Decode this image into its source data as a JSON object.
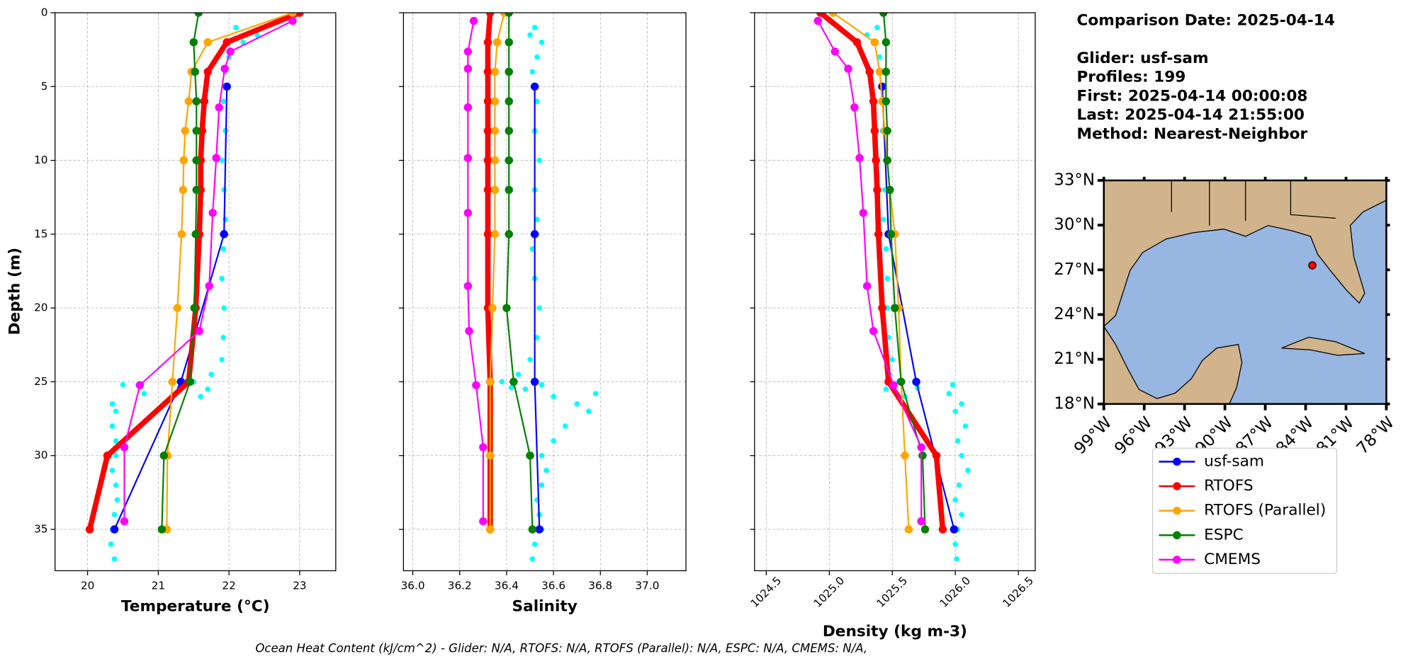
{
  "info": {
    "title": "Comparison Date: 2025-04-14",
    "lines": [
      "Glider: usf-sam",
      "Profiles: 199",
      "First: 2025-04-14 00:00:08",
      "Last: 2025-04-14 21:55:00",
      "Method: Nearest-Neighbor"
    ]
  },
  "footer": "Ocean Heat Content (kJ/cm^2) - Glider: N/A,  RTOFS: N/A,  RTOFS (Parallel): N/A,  ESPC: N/A,  CMEMS: N/A,",
  "chart_data": [
    {
      "type": "line",
      "x_label": "Temperature (°C)",
      "y_label": "Depth (m)",
      "xlim": [
        19.54,
        23.51
      ],
      "xticks": [
        20,
        21,
        22,
        23
      ],
      "ylim": [
        37.8,
        0
      ],
      "yticks": [
        0,
        5,
        10,
        15,
        20,
        25,
        30,
        35
      ],
      "ytick_labels": true,
      "grid": true,
      "scatter": {
        "color": "#00ffff",
        "depths": [
          1,
          1.5,
          2,
          3,
          4,
          6,
          8,
          10,
          12,
          14,
          16,
          18,
          20,
          22,
          23.5,
          24.5,
          25,
          25.5,
          26,
          25.2,
          26.5,
          27,
          28,
          29,
          30,
          31,
          32,
          33,
          34,
          35,
          36,
          37,
          25.8,
          25.4
        ],
        "values": [
          22.1,
          22.4,
          22.2,
          22.0,
          21.95,
          21.92,
          21.95,
          21.9,
          21.93,
          21.95,
          21.92,
          21.9,
          21.93,
          21.92,
          21.9,
          21.75,
          21.5,
          21.7,
          21.6,
          20.5,
          20.35,
          20.4,
          20.35,
          20.4,
          20.4,
          20.35,
          20.4,
          20.42,
          20.38,
          20.35,
          20.33,
          20.38,
          20.8,
          21.3
        ]
      },
      "series": [
        {
          "name": "usf-sam",
          "color": "#0000ff",
          "width": 1.7,
          "depths": [
            5,
            15,
            25,
            35
          ],
          "values": [
            21.97,
            21.93,
            21.32,
            20.38
          ]
        },
        {
          "name": "RTOFS",
          "color": "#ff0000",
          "width": 6,
          "depths": [
            0,
            2,
            4,
            6,
            8,
            10,
            12,
            15,
            20,
            25,
            30,
            35
          ],
          "values": [
            23.0,
            21.97,
            21.7,
            21.65,
            21.62,
            21.6,
            21.6,
            21.58,
            21.53,
            21.43,
            20.28,
            20.03
          ]
        },
        {
          "name": "RTOFS (Parallel)",
          "color": "#ffa500",
          "width": 1.7,
          "depths": [
            0,
            2,
            4,
            6,
            8,
            10,
            12,
            15,
            20,
            25,
            30,
            35
          ],
          "values": [
            22.9,
            21.7,
            21.47,
            21.43,
            21.38,
            21.36,
            21.35,
            21.33,
            21.27,
            21.2,
            21.13,
            21.12
          ]
        },
        {
          "name": "ESPC",
          "color": "#008000",
          "width": 1.7,
          "depths": [
            0,
            2,
            4,
            6,
            8,
            10,
            12,
            15,
            20,
            25,
            30,
            35
          ],
          "values": [
            21.57,
            21.5,
            21.52,
            21.54,
            21.54,
            21.54,
            21.54,
            21.53,
            21.51,
            21.45,
            21.08,
            21.05
          ]
        },
        {
          "name": "CMEMS",
          "color": "#ff00ff",
          "width": 1.7,
          "depths": [
            0.55,
            2.63,
            3.79,
            6.41,
            9.84,
            13.56,
            18.51,
            21.56,
            25.23,
            29.44,
            34.45
          ],
          "values": [
            22.9,
            22.02,
            21.94,
            21.86,
            21.82,
            21.77,
            21.72,
            21.58,
            20.74,
            20.52,
            20.52
          ]
        }
      ]
    },
    {
      "type": "line",
      "x_label": "Salinity",
      "xlim": [
        35.96,
        37.165
      ],
      "xticks": [
        {
          "value": 36,
          "label": "36.0"
        },
        36.2,
        36.4,
        36.6,
        36.8,
        {
          "value": 37,
          "label": "37.0"
        }
      ],
      "ylim": [
        37.8,
        0
      ],
      "yticks": [
        0,
        5,
        10,
        15,
        20,
        25,
        30,
        35
      ],
      "ytick_labels": false,
      "grid": true,
      "scatter": {
        "color": "#00ffff",
        "depths": [
          1,
          1.5,
          2,
          3,
          4,
          6,
          8,
          10,
          12,
          14,
          16,
          18,
          20,
          22,
          23.5,
          24.5,
          25,
          25.5,
          26,
          25.2,
          26.5,
          27,
          28,
          29,
          30,
          31,
          32,
          33,
          34,
          35,
          36,
          37,
          25.8,
          25.4
        ],
        "values": [
          36.52,
          36.5,
          36.55,
          36.53,
          36.51,
          36.53,
          36.52,
          36.54,
          36.52,
          36.53,
          36.51,
          36.52,
          36.54,
          36.53,
          36.5,
          36.45,
          36.38,
          36.48,
          36.6,
          36.55,
          36.7,
          36.75,
          36.65,
          36.6,
          36.55,
          36.57,
          36.55,
          36.53,
          36.54,
          36.55,
          36.52,
          36.51,
          36.78,
          36.42
        ]
      },
      "series": [
        {
          "name": "usf-sam",
          "color": "#0000ff",
          "width": 1.7,
          "depths": [
            5,
            15,
            25,
            35
          ],
          "values": [
            36.52,
            36.52,
            36.52,
            36.54
          ]
        },
        {
          "name": "RTOFS",
          "color": "#ff0000",
          "width": 6,
          "depths": [
            0,
            2,
            4,
            6,
            8,
            10,
            12,
            15,
            20,
            25,
            30,
            35
          ],
          "values": [
            36.33,
            36.32,
            36.32,
            36.32,
            36.32,
            36.32,
            36.32,
            36.32,
            36.32,
            36.33,
            36.33,
            36.33
          ]
        },
        {
          "name": "RTOFS (Parallel)",
          "color": "#ffa500",
          "width": 1.7,
          "depths": [
            0,
            2,
            4,
            6,
            8,
            10,
            12,
            15,
            20,
            25,
            30,
            35
          ],
          "values": [
            36.39,
            36.36,
            36.35,
            36.35,
            36.35,
            36.35,
            36.35,
            36.35,
            36.34,
            36.33,
            36.33,
            36.33
          ]
        },
        {
          "name": "ESPC",
          "color": "#008000",
          "width": 1.7,
          "depths": [
            0,
            2,
            4,
            6,
            8,
            10,
            12,
            15,
            20,
            25,
            30,
            35
          ],
          "values": [
            36.41,
            36.41,
            36.41,
            36.41,
            36.41,
            36.41,
            36.41,
            36.41,
            36.4,
            36.43,
            36.5,
            36.51
          ]
        },
        {
          "name": "CMEMS",
          "color": "#ff00ff",
          "width": 1.7,
          "depths": [
            0.55,
            2.63,
            3.79,
            6.41,
            9.84,
            13.56,
            18.51,
            21.56,
            25.23,
            29.44,
            34.45
          ],
          "values": [
            36.26,
            36.235,
            36.235,
            36.235,
            36.235,
            36.235,
            36.235,
            36.24,
            36.27,
            36.3,
            36.3
          ]
        }
      ]
    },
    {
      "type": "line",
      "x_label": "Density (kg m-3)",
      "xlim": [
        1024.407,
        1026.634
      ],
      "xticks": [
        1024.5,
        {
          "value": 1025,
          "label": "1025.0"
        },
        1025.5,
        {
          "value": 1026,
          "label": "1026.0"
        },
        1026.5
      ],
      "ylim": [
        37.8,
        0
      ],
      "yticks": [
        0,
        5,
        10,
        15,
        20,
        25,
        30,
        35
      ],
      "ytick_labels": false,
      "grid": true,
      "scatter": {
        "color": "#00ffff",
        "depths": [
          1,
          1.5,
          2,
          3,
          4,
          6,
          8,
          10,
          12,
          14,
          16,
          18,
          20,
          22,
          23.5,
          24.5,
          25,
          25.5,
          26,
          25.2,
          26.5,
          27,
          28,
          29,
          30,
          31,
          32,
          33,
          34,
          35,
          36,
          37,
          25.8,
          25.4
        ],
        "values": [
          1025.38,
          1025.3,
          1025.35,
          1025.4,
          1025.42,
          1025.43,
          1025.42,
          1025.45,
          1025.44,
          1025.43,
          1025.45,
          1025.46,
          1025.46,
          1025.47,
          1025.5,
          1025.48,
          1025.55,
          1025.45,
          1025.6,
          1025.98,
          1026.05,
          1026.0,
          1026.08,
          1026.02,
          1026.05,
          1026.1,
          1026.03,
          1026.0,
          1026.05,
          1026.02,
          1026.0,
          1026.01,
          1025.95,
          1025.7
        ]
      },
      "series": [
        {
          "name": "usf-sam",
          "color": "#0000ff",
          "width": 1.7,
          "depths": [
            5,
            15,
            25,
            35
          ],
          "values": [
            1025.42,
            1025.47,
            1025.69,
            1025.99
          ]
        },
        {
          "name": "RTOFS",
          "color": "#ff0000",
          "width": 6,
          "depths": [
            0,
            2,
            4,
            6,
            8,
            10,
            12,
            15,
            20,
            25,
            30,
            35
          ],
          "values": [
            1024.93,
            1025.22,
            1025.32,
            1025.35,
            1025.36,
            1025.37,
            1025.38,
            1025.39,
            1025.42,
            1025.47,
            1025.85,
            1025.9
          ]
        },
        {
          "name": "RTOFS (Parallel)",
          "color": "#ffa500",
          "width": 1.7,
          "depths": [
            0,
            2,
            4,
            6,
            8,
            10,
            12,
            15,
            20,
            25,
            30,
            35
          ],
          "values": [
            1025.03,
            1025.36,
            1025.4,
            1025.42,
            1025.44,
            1025.46,
            1025.48,
            1025.52,
            1025.55,
            1025.57,
            1025.6,
            1025.63
          ]
        },
        {
          "name": "ESPC",
          "color": "#008000",
          "width": 1.7,
          "depths": [
            0,
            2,
            4,
            6,
            8,
            10,
            12,
            15,
            20,
            25,
            30,
            35
          ],
          "values": [
            1025.43,
            1025.45,
            1025.45,
            1025.45,
            1025.46,
            1025.46,
            1025.48,
            1025.49,
            1025.52,
            1025.57,
            1025.74,
            1025.76
          ]
        },
        {
          "name": "CMEMS",
          "color": "#ff00ff",
          "width": 1.7,
          "depths": [
            0.55,
            2.63,
            3.79,
            6.41,
            9.84,
            13.56,
            18.51,
            21.56,
            25.23,
            29.44,
            34.45
          ],
          "values": [
            1024.91,
            1025.045,
            1025.15,
            1025.2,
            1025.24,
            1025.27,
            1025.3,
            1025.35,
            1025.51,
            1025.73,
            1025.73
          ]
        }
      ]
    },
    {
      "type": "map",
      "xlim": [
        -99,
        -78
      ],
      "ylim": [
        18,
        33
      ],
      "xticks": [
        {
          "value": -99,
          "label": "99°W"
        },
        {
          "value": -96,
          "label": "96°W"
        },
        {
          "value": -93,
          "label": "93°W"
        },
        {
          "value": -90,
          "label": "90°W"
        },
        {
          "value": -87,
          "label": "87°W"
        },
        {
          "value": -84,
          "label": "84°W"
        },
        {
          "value": -81,
          "label": "81°W"
        },
        {
          "value": -78,
          "label": "78°W"
        }
      ],
      "yticks": [
        {
          "value": 18,
          "label": "18°N"
        },
        {
          "value": 21,
          "label": "21°N"
        },
        {
          "value": 24,
          "label": "24°N"
        },
        {
          "value": 27,
          "label": "27°N"
        },
        {
          "value": 30,
          "label": "30°N"
        },
        {
          "value": 33,
          "label": "33°N"
        }
      ],
      "marker": {
        "lon": -83.5,
        "lat": 27.3,
        "color": "#ff0000"
      }
    }
  ]
}
